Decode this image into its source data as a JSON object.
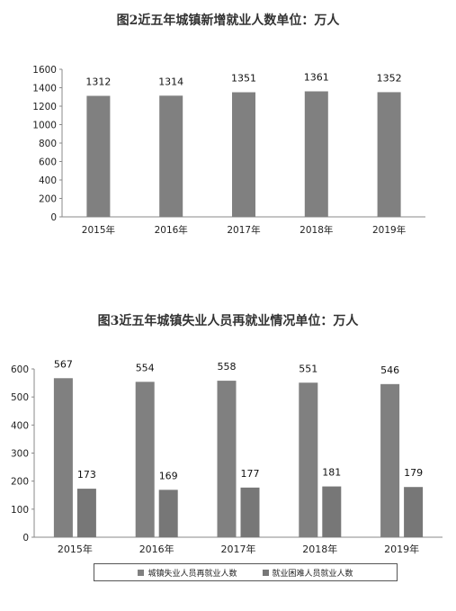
{
  "chart_data": [
    {
      "type": "bar",
      "title": "图2近五年城镇新增就业人数单位：万人",
      "categories": [
        "2015年",
        "2016年",
        "2017年",
        "2018年",
        "2019年"
      ],
      "values": [
        1312,
        1314,
        1351,
        1361,
        1352
      ],
      "ylim": [
        0,
        1600
      ],
      "yticks": [
        0,
        200,
        400,
        600,
        800,
        1000,
        1200,
        1400,
        1600
      ],
      "color": "#808080",
      "grid": false,
      "data_labels": true
    },
    {
      "type": "bar",
      "title": "图3近五年城镇失业人员再就业情况单位：万人",
      "categories": [
        "2015年",
        "2016年",
        "2017年",
        "2018年",
        "2019年"
      ],
      "series": [
        {
          "name": "城镇失业人员再就业人数",
          "values": [
            567,
            554,
            558,
            551,
            546
          ],
          "color": "#808080"
        },
        {
          "name": "就业困难人员就业人数",
          "values": [
            173,
            169,
            177,
            181,
            179
          ],
          "color": "#777777"
        }
      ],
      "ylim": [
        0,
        600
      ],
      "yticks": [
        0,
        100,
        200,
        300,
        400,
        500,
        600
      ],
      "grid": false,
      "legend": "bottom",
      "data_labels": true
    }
  ]
}
